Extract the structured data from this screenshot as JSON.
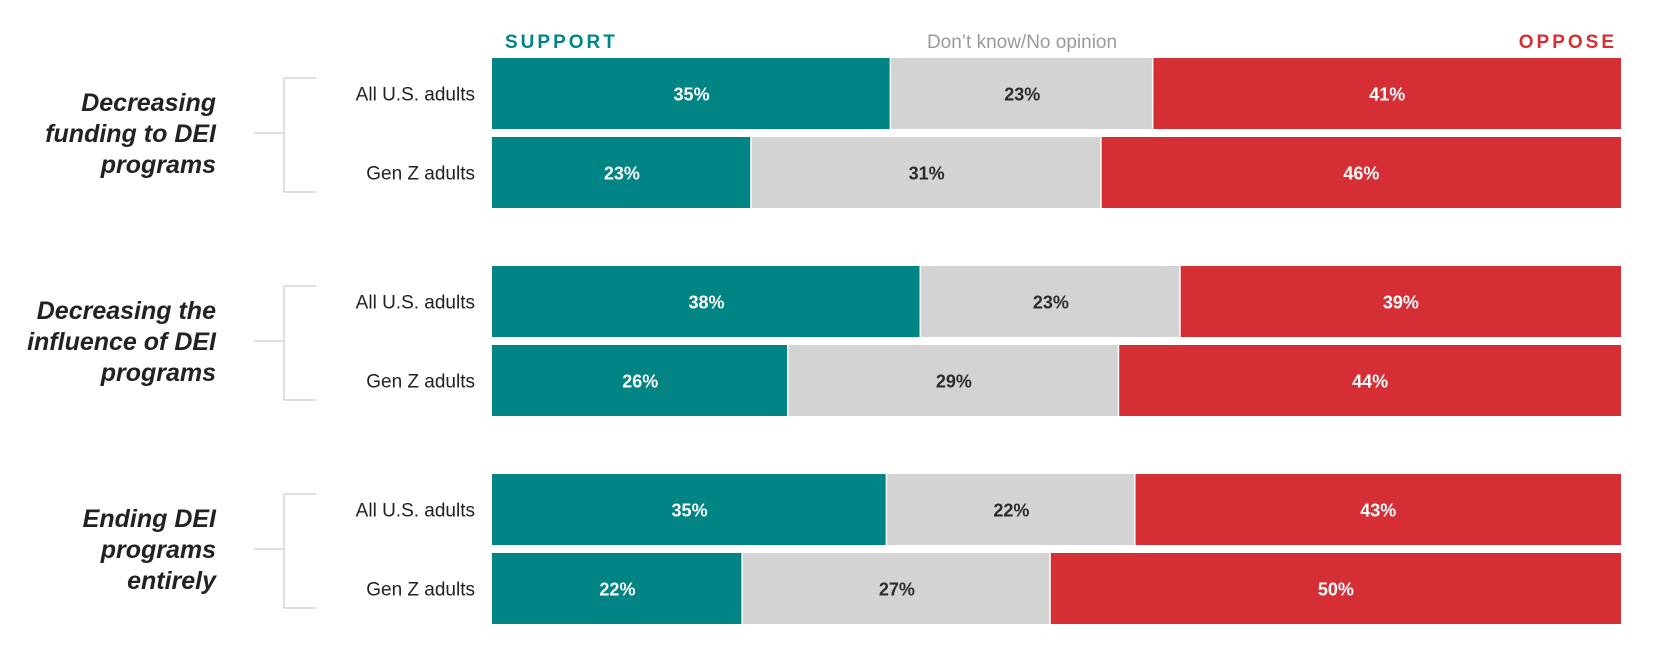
{
  "colors": {
    "support": "#008584",
    "neutral": "#d3d3d3",
    "oppose": "#d62e35",
    "neutral_text": "#9a9a9a",
    "label_light": "#ffffff",
    "label_dark": "#2b2b2b",
    "bracket": "#cccccc"
  },
  "chart_data": {
    "type": "bar",
    "orientation": "horizontal",
    "stacked": true,
    "normalized": true,
    "legend": {
      "placement": "top",
      "entries": [
        "SUPPORT",
        "Don’t know/No opinion",
        "OPPOSE"
      ]
    },
    "series_names": [
      "SUPPORT",
      "Don’t know/No opinion",
      "OPPOSE"
    ],
    "groups": [
      {
        "label": "Decreasing funding to DEI programs",
        "label_lines": [
          "Decreasing",
          "funding to DEI",
          "programs"
        ],
        "rows": [
          {
            "label": "All U.S. adults",
            "values": [
              35,
              23,
              41
            ],
            "value_labels": [
              "35%",
              "23%",
              "41%"
            ]
          },
          {
            "label": "Gen Z adults",
            "values": [
              23,
              31,
              46
            ],
            "value_labels": [
              "23%",
              "31%",
              "46%"
            ]
          }
        ]
      },
      {
        "label": "Decreasing the influence of DEI programs",
        "label_lines": [
          "Decreasing the",
          "influence of DEI",
          "programs"
        ],
        "rows": [
          {
            "label": "All U.S. adults",
            "values": [
              38,
              23,
              39
            ],
            "value_labels": [
              "38%",
              "23%",
              "39%"
            ]
          },
          {
            "label": "Gen Z adults",
            "values": [
              26,
              29,
              44
            ],
            "value_labels": [
              "26%",
              "29%",
              "44%"
            ]
          }
        ]
      },
      {
        "label": "Ending DEI programs entirely",
        "label_lines": [
          "Ending DEI",
          "programs",
          "entirely"
        ],
        "rows": [
          {
            "label": "All U.S. adults",
            "values": [
              35,
              22,
              43
            ],
            "value_labels": [
              "35%",
              "22%",
              "43%"
            ]
          },
          {
            "label": "Gen Z adults",
            "values": [
              22,
              27,
              50
            ],
            "value_labels": [
              "22%",
              "27%",
              "50%"
            ]
          }
        ]
      }
    ]
  }
}
